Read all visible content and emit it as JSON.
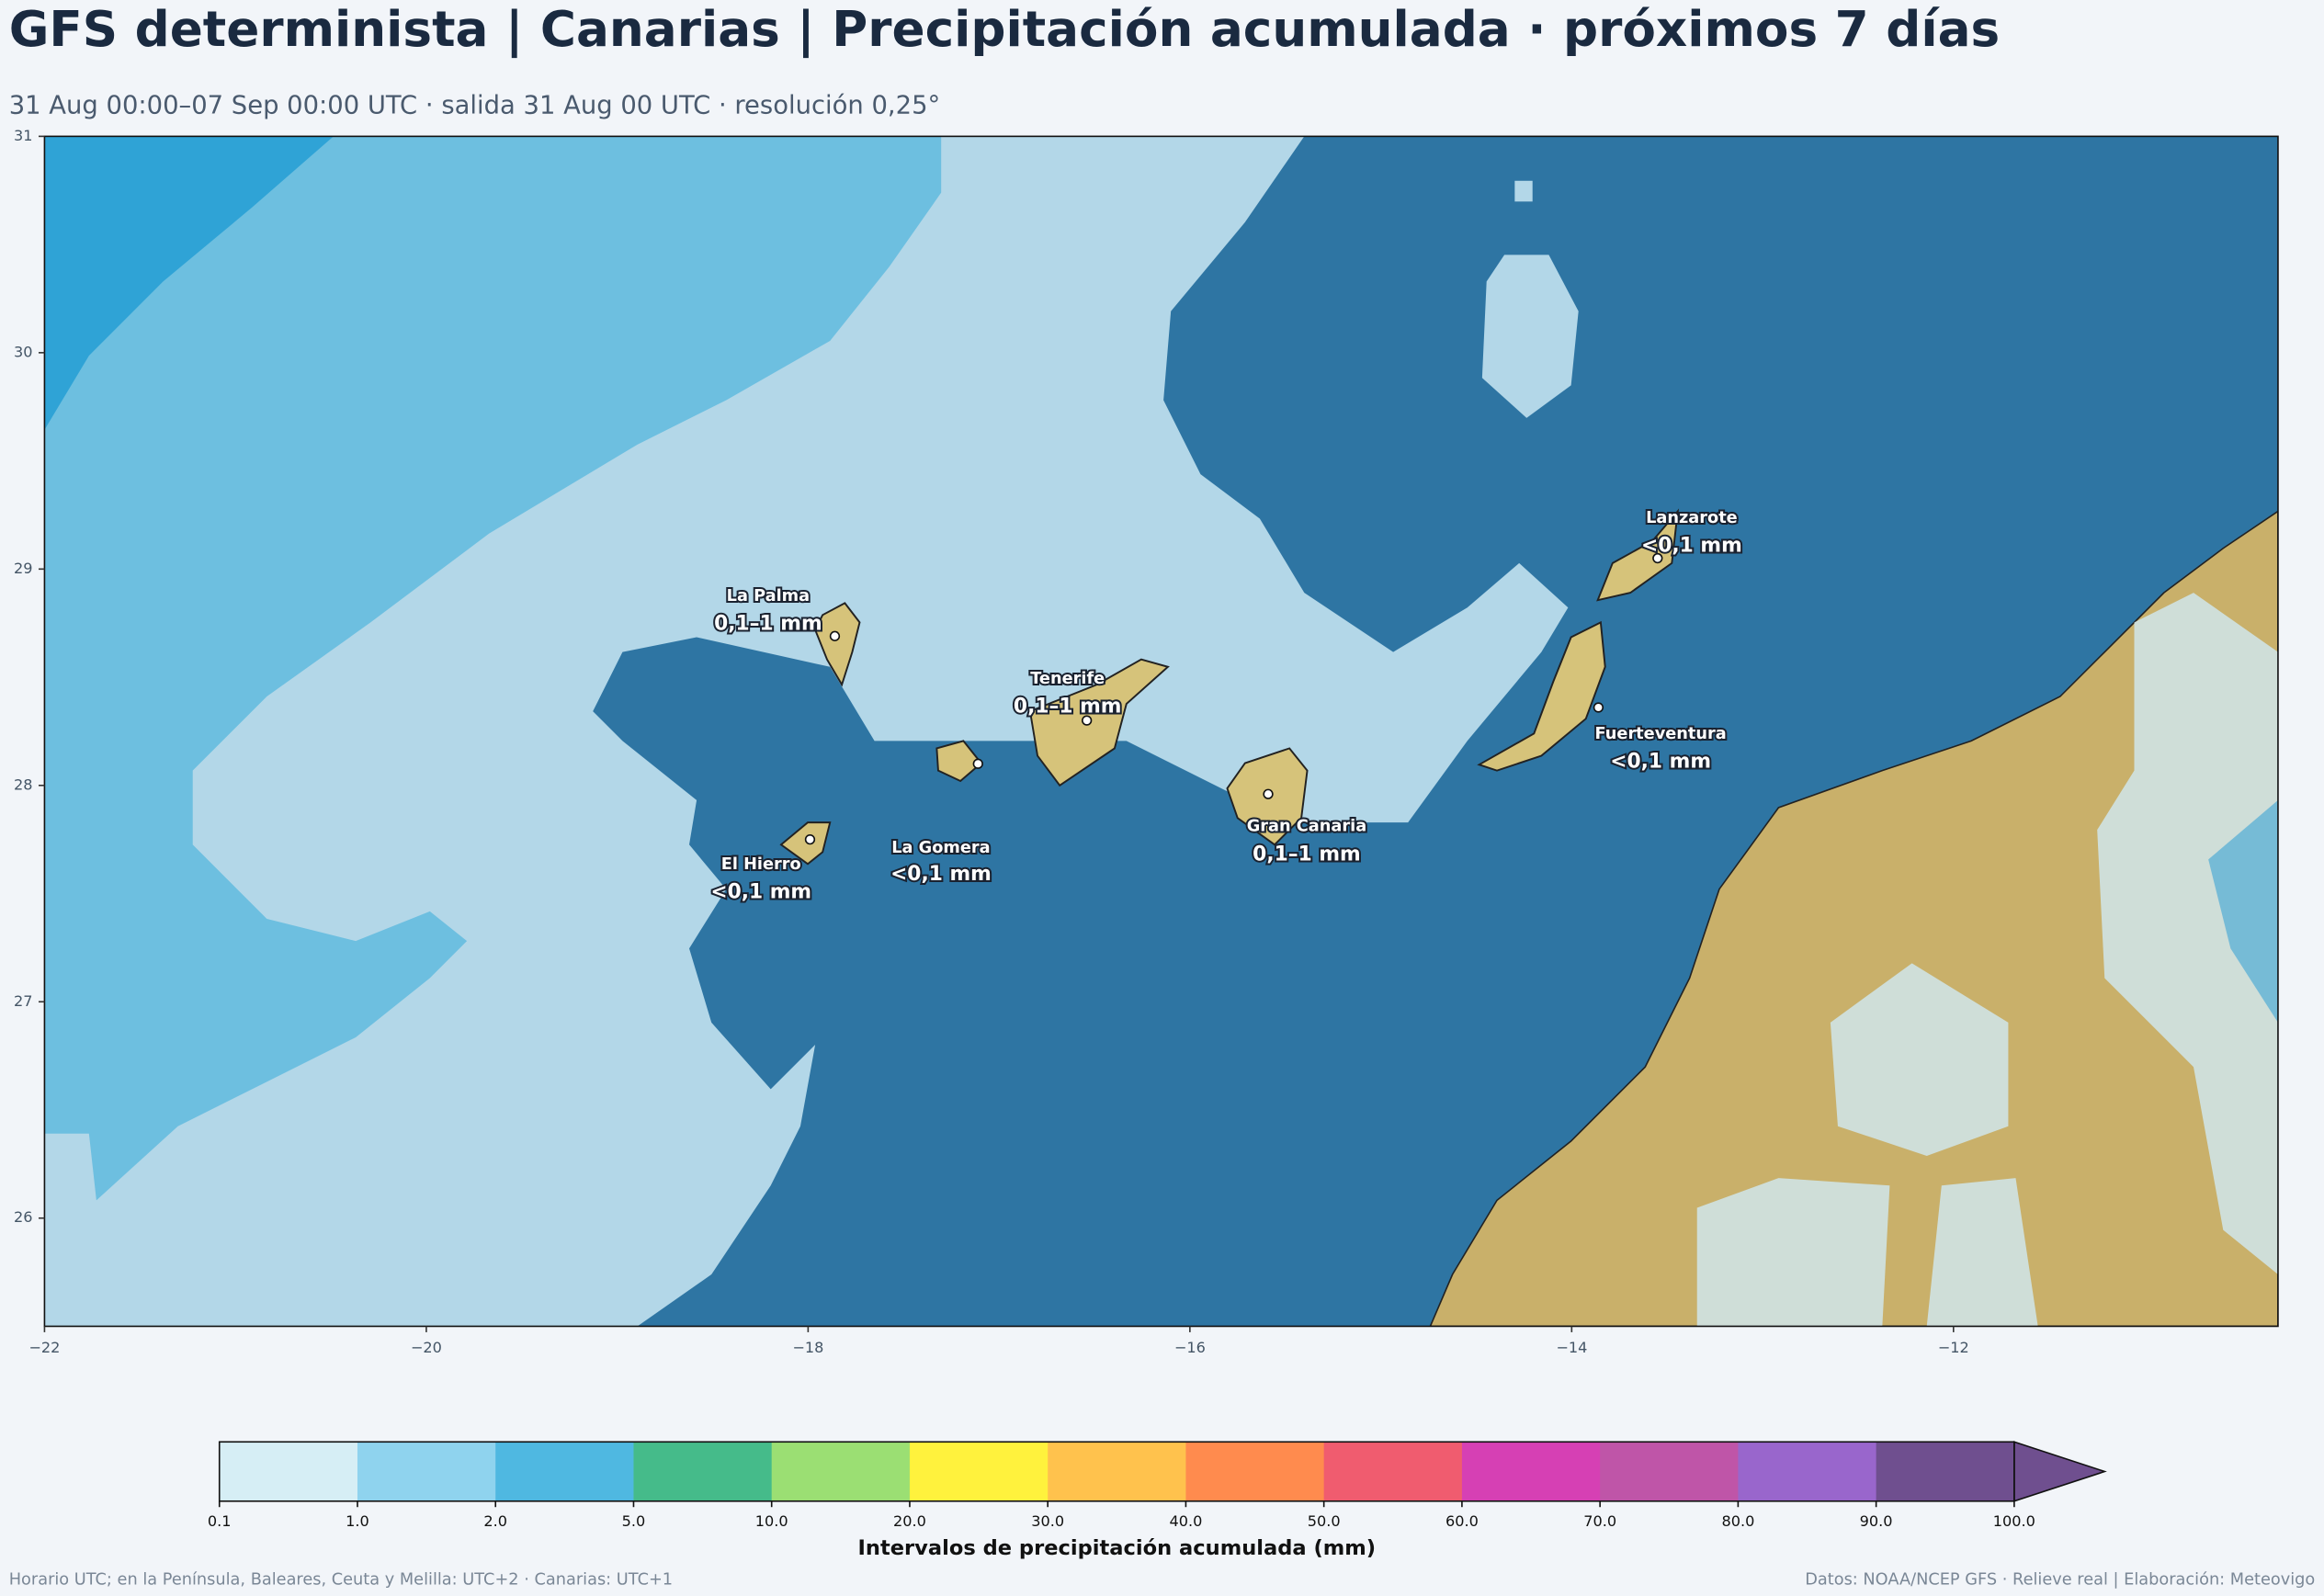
{
  "header": {
    "title": "GFS determinista | Canarias | Precipitación acumulada · próximos 7 días",
    "subtitle": "31 Aug 00:00–07 Sep 00:00 UTC · salida 31 Aug 00 UTC · resolución 0,25°"
  },
  "map": {
    "xlim": [
      -22,
      -10.3
    ],
    "ylim": [
      25.5,
      31
    ],
    "xticks": [
      {
        "value": -22,
        "label": "−22"
      },
      {
        "value": -20,
        "label": "−20"
      },
      {
        "value": -18,
        "label": "−18"
      },
      {
        "value": -16,
        "label": "−16"
      },
      {
        "value": -14,
        "label": "−14"
      },
      {
        "value": -12,
        "label": "−12"
      }
    ],
    "yticks": [
      26,
      27,
      28,
      29,
      30,
      31
    ],
    "islands": [
      {
        "name": "La Palma",
        "label": "0,1–1 mm",
        "lon": -17.86,
        "lat": 28.69
      },
      {
        "name": "Tenerife",
        "label": "0,1–1 mm",
        "lon": -16.54,
        "lat": 28.3
      },
      {
        "name": "La Gomera",
        "label": "<0,1 mm",
        "lon": -17.11,
        "lat": 28.1
      },
      {
        "name": "El Hierro",
        "label": "<0,1 mm",
        "lon": -17.99,
        "lat": 27.75
      },
      {
        "name": "Gran Canaria",
        "label": "0,1–1 mm",
        "lon": -15.59,
        "lat": 27.96
      },
      {
        "name": "Fuerteventura",
        "label": "<0,1 mm",
        "lon": -13.86,
        "lat": 28.36
      },
      {
        "name": "Lanzarote",
        "label": "<0,1 mm",
        "lon": -13.55,
        "lat": 29.05
      }
    ]
  },
  "colorbar": {
    "label": "Intervalos de precipitación acumulada (mm)",
    "bounds": [
      {
        "value": 0.1,
        "label": "0.1"
      },
      {
        "value": 1,
        "label": "1.0"
      },
      {
        "value": 2,
        "label": "2.0"
      },
      {
        "value": 5,
        "label": "5.0"
      },
      {
        "value": 10,
        "label": "10.0"
      },
      {
        "value": 20,
        "label": "20.0"
      },
      {
        "value": 30,
        "label": "30.0"
      },
      {
        "value": 40,
        "label": "40.0"
      },
      {
        "value": 50,
        "label": "50.0"
      },
      {
        "value": 60,
        "label": "60.0"
      },
      {
        "value": 70,
        "label": "70.0"
      },
      {
        "value": 80,
        "label": "80.0"
      },
      {
        "value": 90,
        "label": "90.0"
      },
      {
        "value": 100,
        "label": "100.0"
      }
    ],
    "colors": [
      "#d6eef5",
      "#8fd3ee",
      "#4fb8e1",
      "#45bb8a",
      "#9bdf73",
      "#fff23d",
      "#ffc24d",
      "#ff8b4e",
      "#f05c6f",
      "#d640b4",
      "#bf55a8",
      "#9966cc",
      "#6f4f8f"
    ],
    "extend_color": "#6f4f8f"
  },
  "footer": {
    "left": "Horario UTC; en la Península, Baleares, Ceuta y Melilla: UTC+2 · Canarias: UTC+1",
    "right": "Datos: NOAA/NCEP GFS · Relieve real | Elaboración: Meteovigo"
  }
}
